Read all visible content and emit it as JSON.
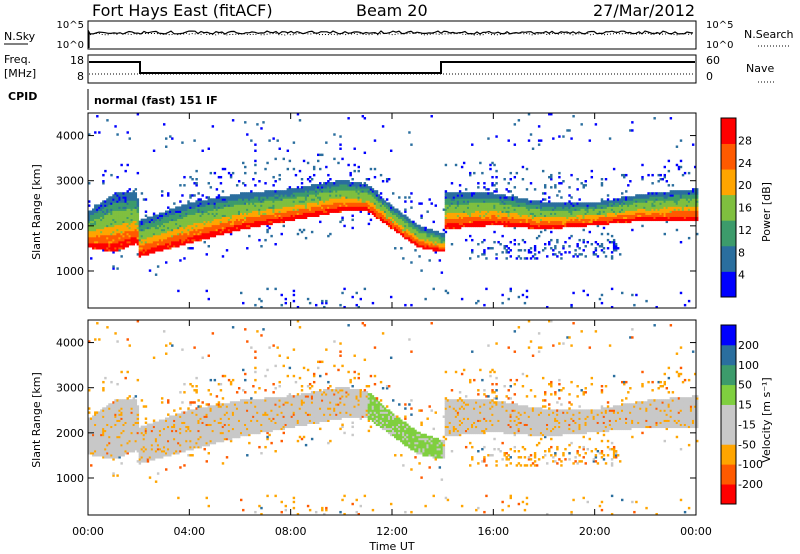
{
  "header": {
    "station": "Fort Hays East (fitACF)",
    "beam": "Beam 20",
    "date": "27/Mar/2012"
  },
  "aux_panels": {
    "nsky_label": "N.Sky",
    "nsky_ticks": [
      "10^5",
      "10^0"
    ],
    "nsearch_label": "N.Search",
    "nsearch_ticks": [
      "10^5",
      "10^0"
    ],
    "freq_label": "Freq.",
    "freq_unit": "[MHz]",
    "freq_ticks": [
      "18",
      "8"
    ],
    "nave_label": "Nave",
    "nave_ticks": [
      "60",
      "0"
    ],
    "cpid_label": "CPID",
    "cpid_text": "normal (fast) 151 IF"
  },
  "x_axis": {
    "label": "Time UT",
    "ticks": [
      "00:00",
      "04:00",
      "08:00",
      "12:00",
      "16:00",
      "20:00",
      "00:00"
    ]
  },
  "chart_data": [
    {
      "type": "heatmap",
      "title": "",
      "parameter": "Power",
      "xlabel": "Time UT",
      "ylabel": "Slant Range [km]",
      "xlim_hours": [
        0,
        24
      ],
      "ylim_km": [
        180,
        4500
      ],
      "y_ticks": [
        "4000",
        "3000",
        "2000",
        "1000"
      ],
      "colorbar": {
        "label": "Power [dB]",
        "ticks": [
          "28",
          "24",
          "20",
          "16",
          "12",
          "8",
          "4"
        ],
        "range": [
          0,
          30
        ],
        "colors": [
          "#0000ff",
          "#2a6e9e",
          "#3c9b6b",
          "#7fbf3f",
          "#ffa500",
          "#ff5a00",
          "#ff0000"
        ]
      },
      "echo_band": [
        {
          "t": 0.0,
          "lower": 1500,
          "upper": 2300
        },
        {
          "t": 1.0,
          "lower": 1400,
          "upper": 2700
        },
        {
          "t": 1.9,
          "lower": 1600,
          "upper": 2700
        },
        {
          "t": 2.0,
          "lower": 1300,
          "upper": 2100
        },
        {
          "t": 4.0,
          "lower": 1600,
          "upper": 2500
        },
        {
          "t": 6.0,
          "lower": 1900,
          "upper": 2700
        },
        {
          "t": 8.0,
          "lower": 2100,
          "upper": 2800
        },
        {
          "t": 10.0,
          "lower": 2300,
          "upper": 3000
        },
        {
          "t": 11.0,
          "lower": 2300,
          "upper": 2900
        },
        {
          "t": 12.0,
          "lower": 1900,
          "upper": 2400
        },
        {
          "t": 13.0,
          "lower": 1500,
          "upper": 2000
        },
        {
          "t": 14.0,
          "lower": 1400,
          "upper": 1800
        },
        {
          "t": 14.01,
          "lower": 1900,
          "upper": 2700
        },
        {
          "t": 16.0,
          "lower": 2000,
          "upper": 2700
        },
        {
          "t": 18.0,
          "lower": 1900,
          "upper": 2500
        },
        {
          "t": 20.0,
          "lower": 2000,
          "upper": 2500
        },
        {
          "t": 22.0,
          "lower": 2100,
          "upper": 2700
        },
        {
          "t": 24.0,
          "lower": 2100,
          "upper": 2800
        }
      ]
    },
    {
      "type": "heatmap",
      "title": "",
      "parameter": "Velocity",
      "xlabel": "Time UT",
      "ylabel": "Slant Range [km]",
      "xlim_hours": [
        0,
        24
      ],
      "ylim_km": [
        180,
        4500
      ],
      "y_ticks": [
        "4000",
        "3000",
        "2000",
        "1000"
      ],
      "colorbar": {
        "label": "Velocity [m s⁻¹]",
        "ticks": [
          "200",
          "100",
          "50",
          "15",
          "-15",
          "-50",
          "-100",
          "-200"
        ],
        "range": [
          -250,
          250
        ],
        "colors": [
          "#ff0000",
          "#ff5a00",
          "#ffa500",
          "#c8c8c8",
          "#c8c8c8",
          "#7fcf3f",
          "#3c9b6b",
          "#2a6e9e",
          "#0000ff"
        ]
      }
    }
  ]
}
